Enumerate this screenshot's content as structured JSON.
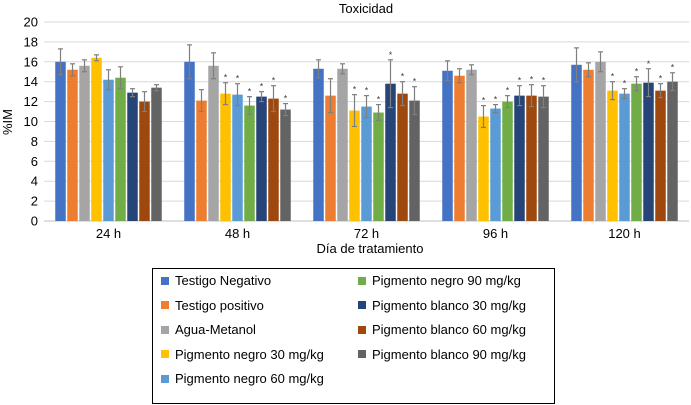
{
  "chart_data": {
    "type": "bar",
    "title": "Toxicidad",
    "xlabel": "Día de tratamiento",
    "ylabel": "%IM",
    "ylim": [
      0,
      20
    ],
    "yticks": [
      0,
      2,
      4,
      6,
      8,
      10,
      12,
      14,
      16,
      18,
      20
    ],
    "grid": true,
    "legend_position": "bottom",
    "categories": [
      "24 h",
      "48 h",
      "72 h",
      "96 h",
      "120 h"
    ],
    "significance_marker": "*",
    "series": [
      {
        "name": "Testigo Negativo",
        "color": "#4472C4",
        "values": [
          16.0,
          16.0,
          15.3,
          15.1,
          15.7
        ],
        "errors": [
          1.3,
          1.7,
          0.9,
          1.0,
          1.7
        ],
        "significant": [
          false,
          false,
          false,
          false,
          false
        ]
      },
      {
        "name": "Testigo positivo",
        "color": "#ED7D31",
        "values": [
          15.2,
          12.1,
          12.6,
          14.6,
          15.2
        ],
        "errors": [
          0.6,
          1.1,
          1.7,
          0.7,
          0.7
        ],
        "significant": [
          false,
          false,
          false,
          false,
          false
        ]
      },
      {
        "name": "Agua-Metanol",
        "color": "#A5A5A5",
        "values": [
          15.6,
          15.6,
          15.3,
          15.2,
          16.0
        ],
        "errors": [
          0.6,
          1.3,
          0.5,
          0.5,
          1.0
        ],
        "significant": [
          false,
          false,
          false,
          false,
          false
        ]
      },
      {
        "name": "Pigmento negro 30 mg/kg",
        "color": "#FFC000",
        "values": [
          16.4,
          12.8,
          11.1,
          10.5,
          13.1
        ],
        "errors": [
          0.3,
          1.1,
          1.6,
          1.1,
          0.9
        ],
        "significant": [
          false,
          true,
          true,
          true,
          true
        ]
      },
      {
        "name": "Pigmento negro 60 mg/kg",
        "color": "#5B9BD5",
        "values": [
          14.2,
          12.7,
          11.5,
          11.3,
          12.8
        ],
        "errors": [
          1.0,
          1.1,
          1.1,
          0.4,
          0.5
        ],
        "significant": [
          false,
          true,
          true,
          true,
          true
        ]
      },
      {
        "name": "Pigmento negro 90 mg/kg",
        "color": "#70AD47",
        "values": [
          14.4,
          11.6,
          10.9,
          12.0,
          13.8
        ],
        "errors": [
          1.1,
          0.9,
          0.8,
          0.6,
          0.7
        ],
        "significant": [
          false,
          true,
          true,
          true,
          true
        ]
      },
      {
        "name": "Pigmento blanco 30 mg/kg",
        "color": "#264478",
        "values": [
          12.9,
          12.5,
          13.8,
          12.6,
          13.9
        ],
        "errors": [
          0.4,
          0.5,
          2.4,
          1.0,
          1.4
        ],
        "significant": [
          false,
          true,
          true,
          true,
          true
        ]
      },
      {
        "name": "Pigmento blanco 60 mg/kg",
        "color": "#9E480E",
        "values": [
          12.0,
          12.3,
          12.8,
          12.6,
          13.1
        ],
        "errors": [
          1.0,
          1.3,
          1.2,
          1.1,
          0.7
        ],
        "significant": [
          false,
          true,
          true,
          true,
          true
        ]
      },
      {
        "name": "Pigmento blanco 90 mg/kg",
        "color": "#636363",
        "values": [
          13.4,
          11.2,
          12.1,
          12.5,
          14.0
        ],
        "errors": [
          0.3,
          0.6,
          1.4,
          1.1,
          0.9
        ],
        "significant": [
          false,
          true,
          true,
          true,
          true
        ]
      }
    ]
  }
}
